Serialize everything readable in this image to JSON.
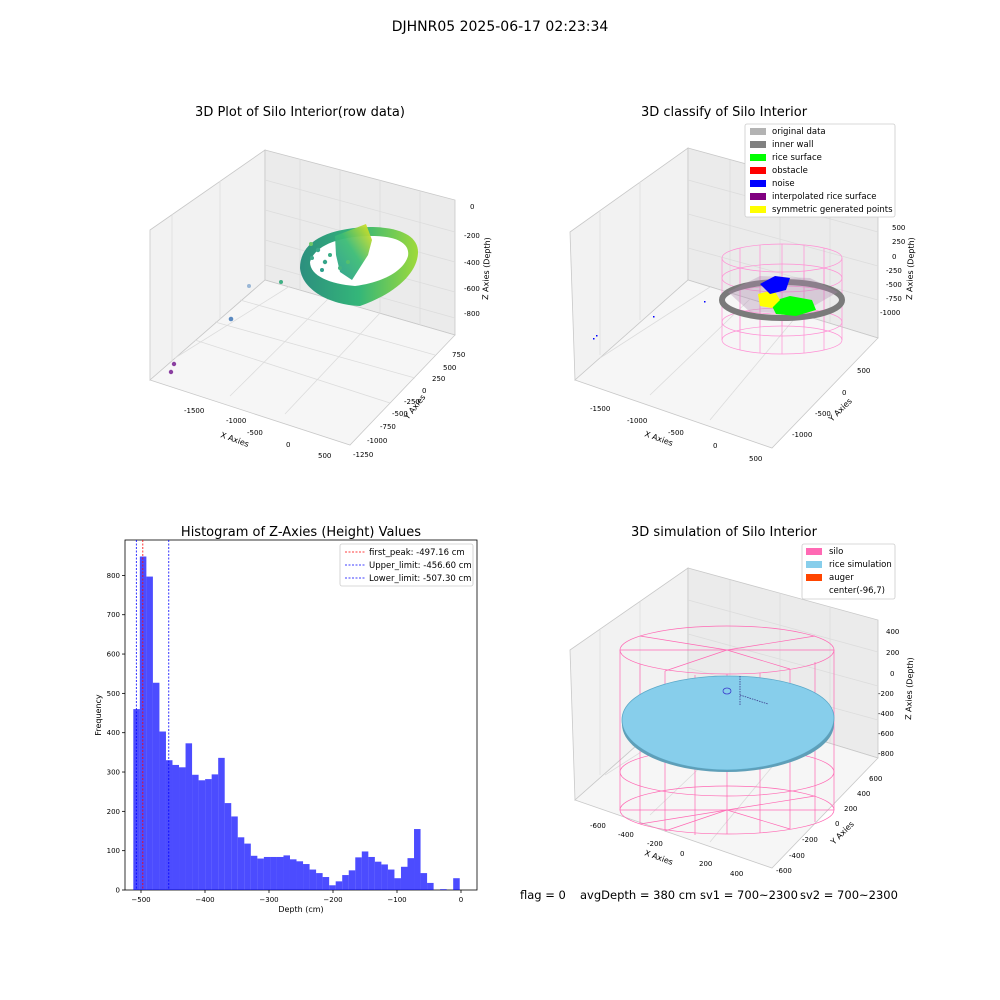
{
  "suptitle": "DJHNR05 2025-06-17 02:23:34",
  "status": {
    "flag": "flag = 0",
    "avg_depth": "avgDepth = 380 cm",
    "sv1": "sv1 = 700~2300",
    "sv2": "sv2 = 700~2300"
  },
  "chart_data": [
    {
      "type": "scatter",
      "title": "3D Plot of Silo Interior(row data)",
      "xlabel": "X Axies",
      "ylabel": "Y Axies",
      "zlabel": "Z Axies (Depth)",
      "x_ticks": [
        "-1500",
        "-1000",
        "-500",
        "0",
        "500"
      ],
      "y_ticks": [
        "750",
        "500",
        "250",
        "0",
        "-250",
        "-500",
        "-750",
        "-1000",
        "-1250"
      ],
      "z_ticks": [
        "0",
        "-200",
        "-400",
        "-600",
        "-800"
      ],
      "colormap": "viridis"
    },
    {
      "type": "scatter",
      "title": "3D classify of Silo Interior",
      "xlabel": "X Axies",
      "ylabel": "Y Axies",
      "zlabel": "Z Axies (Depth)",
      "x_ticks": [
        "-1500",
        "-1000",
        "-500",
        "0",
        "500"
      ],
      "y_ticks": [
        "500",
        "0",
        "-500",
        "-1000"
      ],
      "z_ticks": [
        "500",
        "250",
        "0",
        "-250",
        "-500",
        "-750",
        "-1000"
      ],
      "legend_position": "top-right",
      "legend": [
        {
          "label": "original data",
          "color": "#b3b3b3"
        },
        {
          "label": "inner wall",
          "color": "#808080"
        },
        {
          "label": "rice surface",
          "color": "#00ff00"
        },
        {
          "label": "obstacle",
          "color": "#ff0000"
        },
        {
          "label": "noise",
          "color": "#0000ff"
        },
        {
          "label": "interpolated rice surface",
          "color": "#800080"
        },
        {
          "label": "symmetric generated points",
          "color": "#ffff00"
        }
      ]
    },
    {
      "type": "bar",
      "title": "Histogram of Z-Axies (Height) Values",
      "xlabel": "Depth (cm)",
      "ylabel": "Frequency",
      "xlim": [
        -525,
        25
      ],
      "ylim": [
        0,
        890
      ],
      "x_ticks": [
        -500,
        -400,
        -300,
        -200,
        -100,
        0
      ],
      "y_ticks": [
        0,
        100,
        200,
        300,
        400,
        500,
        600,
        700,
        800
      ],
      "bar_color": "#0000ff",
      "bin_width": 10.2,
      "bin_start": -512,
      "values": [
        460,
        848,
        797,
        527,
        403,
        330,
        318,
        312,
        373,
        293,
        279,
        282,
        294,
        336,
        221,
        187,
        134,
        118,
        87,
        80,
        84,
        84,
        84,
        88,
        78,
        73,
        66,
        52,
        43,
        33,
        12,
        22,
        38,
        50,
        83,
        98,
        84,
        72,
        65,
        52,
        30,
        59,
        81,
        155,
        43,
        18,
        0,
        2,
        0,
        30
      ],
      "legend_position": "top-right",
      "vlines": [
        {
          "label": "first_peak: -497.16 cm",
          "x": -497.16,
          "color": "#ff0000"
        },
        {
          "label": "Upper_limit: -456.60 cm",
          "x": -456.6,
          "color": "#0000ff"
        },
        {
          "label": "Lower_limit: -507.30 cm",
          "x": -507.3,
          "color": "#0000ff"
        }
      ]
    },
    {
      "type": "scatter",
      "title": "3D simulation of Silo Interior",
      "xlabel": "X Axies",
      "ylabel": "Y Axies",
      "zlabel": "Z Axies (Depth)",
      "x_ticks": [
        "-600",
        "-400",
        "-200",
        "0",
        "200",
        "400"
      ],
      "y_ticks": [
        "600",
        "400",
        "200",
        "0",
        "-200",
        "-400",
        "-600"
      ],
      "z_ticks": [
        "400",
        "200",
        "0",
        "-200",
        "-400",
        "-600",
        "-800"
      ],
      "legend_position": "top-right",
      "legend": [
        {
          "label": "silo",
          "color": "#ff69b4"
        },
        {
          "label": "rice simulation",
          "color": "#87ceeb"
        },
        {
          "label": "auger",
          "color": "#ff4500"
        },
        {
          "label": "center(-96,7)",
          "color": "#ffffff"
        }
      ]
    }
  ]
}
